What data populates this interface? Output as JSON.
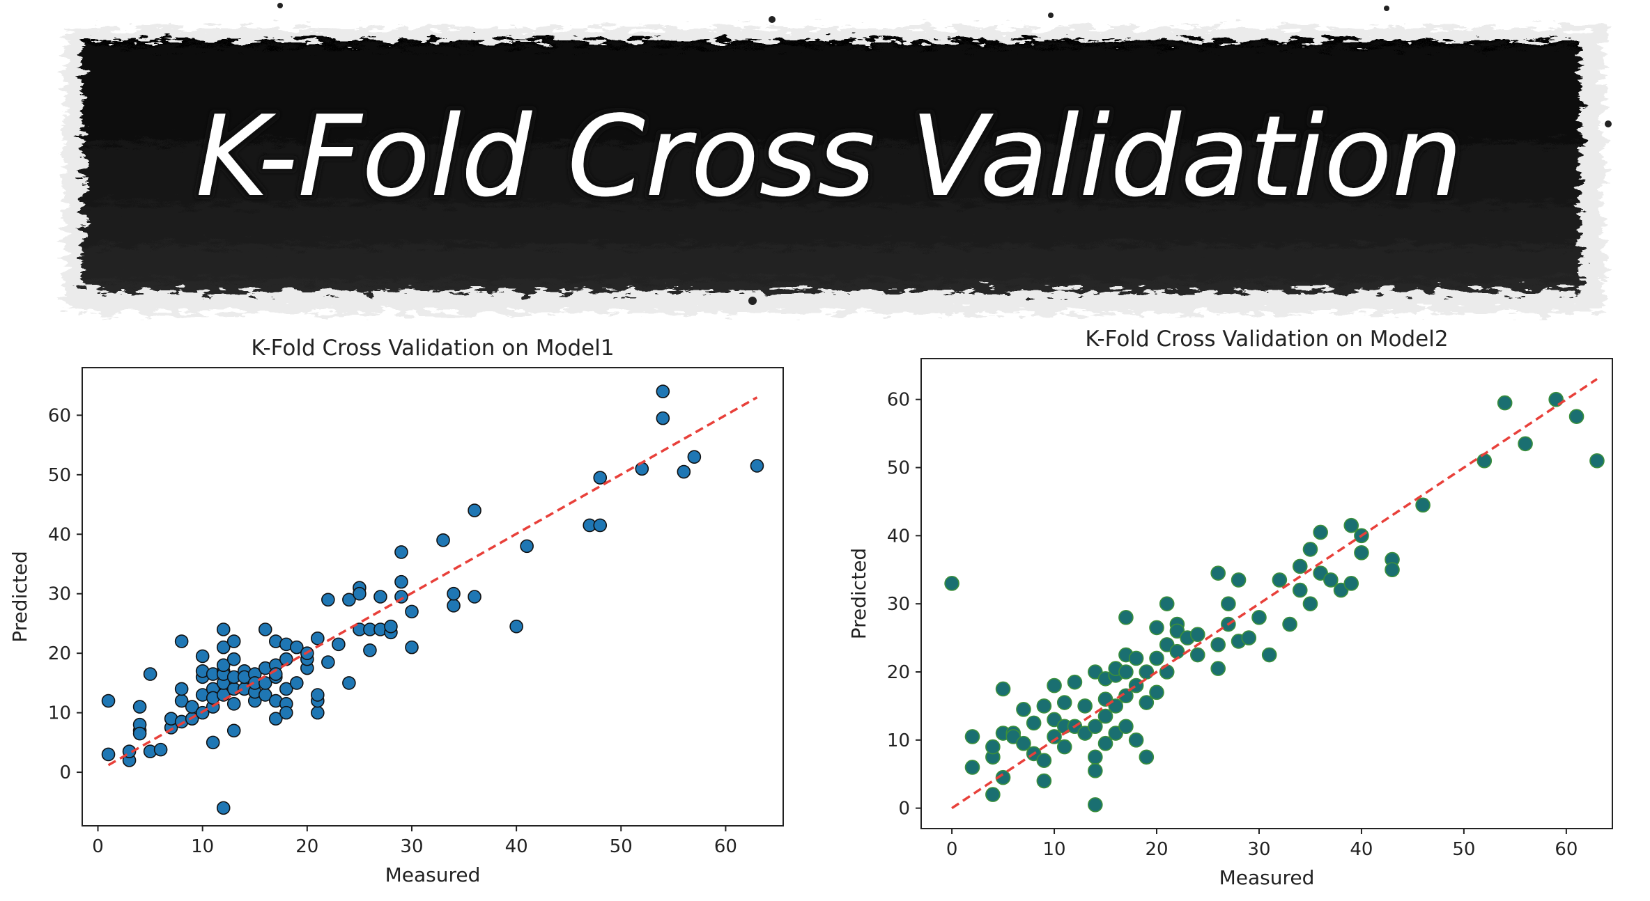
{
  "banner": {
    "title": "K-Fold Cross Validation"
  },
  "chart_data": [
    {
      "type": "scatter",
      "title": "K-Fold Cross Validation on Model1",
      "xlabel": "Measured",
      "ylabel": "Predicted",
      "xlim": [
        -1.5,
        65.5
      ],
      "ylim": [
        -9,
        68
      ],
      "xticks": [
        0,
        10,
        20,
        30,
        40,
        50,
        60
      ],
      "yticks": [
        0,
        10,
        20,
        30,
        40,
        50,
        60
      ],
      "point_color": "#1f77b4",
      "point_edge": "#111111",
      "fit_line": {
        "color": "#e8403a",
        "style": "dashed",
        "x": [
          1,
          63
        ],
        "y": [
          1.2,
          63
        ]
      },
      "x": [
        1,
        1,
        3,
        3,
        4,
        4,
        4,
        4,
        5,
        5,
        6,
        7,
        7,
        8,
        8,
        8,
        8,
        9,
        9,
        10,
        10,
        10,
        10,
        10,
        11,
        11,
        11,
        11,
        11,
        12,
        12,
        12,
        12,
        12,
        12,
        12,
        13,
        13,
        13,
        13,
        13,
        13,
        14,
        14,
        14,
        15,
        15,
        15,
        15,
        16,
        16,
        16,
        16,
        17,
        17,
        17,
        17,
        17,
        17,
        18,
        18,
        18,
        18,
        18,
        19,
        19,
        20,
        20,
        20,
        21,
        21,
        21,
        21,
        22,
        22,
        23,
        24,
        24,
        25,
        25,
        25,
        26,
        26,
        27,
        27,
        28,
        28,
        29,
        29,
        29,
        30,
        30,
        33,
        34,
        34,
        36,
        36,
        40,
        41,
        47,
        48,
        48,
        52,
        54,
        54,
        56,
        57,
        63,
        12
      ],
      "y": [
        3,
        12,
        2,
        3.5,
        7,
        8,
        11,
        6.5,
        16.5,
        3.5,
        3.8,
        7.5,
        9,
        8.5,
        12,
        14,
        22,
        9,
        11,
        13,
        16,
        19.5,
        17,
        10,
        5,
        11,
        14,
        16.5,
        12.5,
        13,
        15,
        17,
        21,
        24,
        16.5,
        18,
        7,
        11.5,
        14,
        16,
        19,
        22,
        14,
        17,
        16,
        16.5,
        12,
        13.5,
        15,
        13,
        15,
        17.5,
        24,
        22,
        16,
        18,
        12,
        9,
        16.5,
        11.5,
        14,
        19,
        21.5,
        10,
        21,
        15,
        17.5,
        19,
        20,
        22.5,
        10,
        12,
        13,
        18.5,
        29,
        21.5,
        15,
        29,
        24,
        31,
        30,
        24,
        20.5,
        24,
        29.5,
        23.5,
        24.5,
        29.5,
        32,
        37,
        27,
        21,
        39,
        28,
        30,
        44,
        29.5,
        24.5,
        38,
        41.5,
        41.5,
        49.5,
        51,
        59.5,
        64,
        50.5,
        53,
        51.5,
        -6
      ]
    },
    {
      "type": "scatter",
      "title": "K-Fold Cross Validation on Model2",
      "xlabel": "Measured",
      "ylabel": "Predicted",
      "xlim": [
        -3,
        64.5
      ],
      "ylim": [
        -3,
        66
      ],
      "xticks": [
        0,
        10,
        20,
        30,
        40,
        50,
        60
      ],
      "yticks": [
        0,
        10,
        20,
        30,
        40,
        50,
        60
      ],
      "point_color": "#1a6f71",
      "point_edge": "#3b8f3b",
      "fit_line": {
        "color": "#e8403a",
        "style": "dashed",
        "x": [
          0,
          63
        ],
        "y": [
          0,
          63
        ]
      },
      "x": [
        0,
        2,
        2,
        4,
        4,
        4,
        5,
        5,
        5,
        6,
        6,
        7,
        7,
        8,
        8,
        9,
        9,
        9,
        10,
        10,
        10,
        11,
        11,
        11,
        12,
        12,
        13,
        13,
        14,
        14,
        14,
        14,
        15,
        15,
        15,
        15,
        16,
        16,
        16,
        16,
        17,
        17,
        17,
        17,
        17,
        18,
        18,
        18,
        19,
        19,
        19,
        20,
        20,
        20,
        21,
        21,
        21,
        22,
        22,
        23,
        24,
        24,
        26,
        26,
        26,
        27,
        27,
        28,
        28,
        29,
        30,
        31,
        32,
        33,
        34,
        34,
        35,
        35,
        36,
        36,
        37,
        38,
        39,
        39,
        40,
        40,
        43,
        43,
        46,
        52,
        54,
        56,
        59,
        61,
        63,
        14,
        22
      ],
      "y": [
        33,
        10.5,
        6,
        2,
        7.5,
        9,
        17.5,
        4.5,
        11,
        11,
        10.5,
        9.5,
        14.5,
        12.5,
        8,
        4,
        7,
        15,
        13,
        18,
        10.5,
        12,
        15.5,
        9,
        18.5,
        12,
        11,
        15,
        20,
        12,
        7.5,
        5.5,
        16,
        19,
        9.5,
        13.5,
        15,
        19.5,
        20.5,
        11,
        16.5,
        20,
        22.5,
        28,
        12,
        18,
        22,
        10,
        15.5,
        20,
        7.5,
        17,
        22,
        26.5,
        20,
        24,
        30,
        27,
        26,
        25,
        25.5,
        22.5,
        20.5,
        24,
        34.5,
        30,
        27,
        33.5,
        24.5,
        25,
        28,
        22.5,
        33.5,
        27,
        32,
        35.5,
        30,
        38,
        34.5,
        40.5,
        33.5,
        32,
        33,
        41.5,
        37.5,
        40,
        36.5,
        35,
        44.5,
        51,
        59.5,
        53.5,
        60,
        57.5,
        51,
        0.5,
        23
      ]
    }
  ]
}
